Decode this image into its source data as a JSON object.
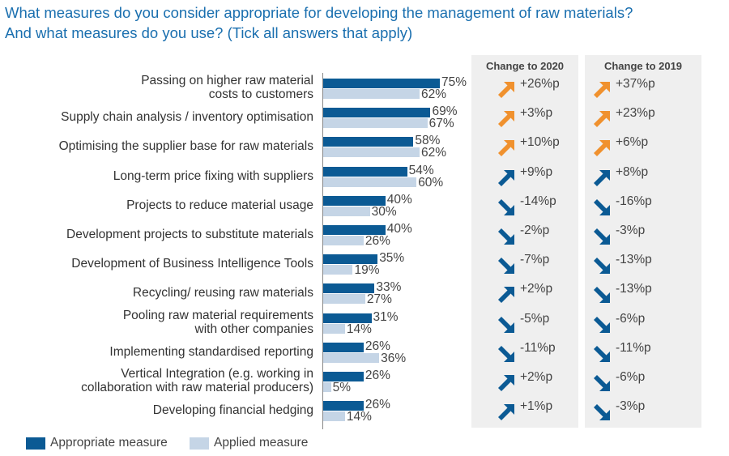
{
  "title_lines": [
    "What measures do you consider appropriate for developing the management of raw materials?",
    "And what measures do you use? (Tick all answers that apply)"
  ],
  "colors": {
    "appropriate": "#0b5a94",
    "applied": "#c5d5e6",
    "up_highlight": "#f0912e",
    "arrow": "#0b5a94"
  },
  "chart_data": {
    "type": "bar",
    "orientation": "horizontal",
    "categories": [
      [
        "Passing on higher raw material",
        "costs to customers"
      ],
      [
        "Supply chain analysis / inventory optimisation"
      ],
      [
        "Optimising the supplier base for raw materials"
      ],
      [
        "Long-term price fixing with suppliers"
      ],
      [
        "Projects to reduce material usage"
      ],
      [
        "Development projects to substitute materials"
      ],
      [
        "Development of Business Intelligence Tools"
      ],
      [
        "Recycling/ reusing raw materials"
      ],
      [
        "Pooling raw material requirements",
        "with other companies"
      ],
      [
        "Implementing standardised reporting"
      ],
      [
        "Vertical Integration (e.g. working in",
        "collaboration with raw material producers)"
      ],
      [
        "Developing financial hedging"
      ]
    ],
    "series": [
      {
        "name": "Appropriate measure",
        "values": [
          75,
          69,
          58,
          54,
          40,
          40,
          35,
          33,
          31,
          26,
          26,
          26
        ]
      },
      {
        "name": "Applied measure",
        "values": [
          62,
          67,
          62,
          60,
          30,
          26,
          19,
          27,
          14,
          36,
          5,
          14
        ]
      }
    ],
    "unit": "%",
    "legend": "bottom-left",
    "change_columns": [
      {
        "title": "Change to 2020",
        "values": [
          "+26%p",
          "+3%p",
          "+10%p",
          "+9%p",
          "-14%p",
          "-2%p",
          "-7%p",
          "+2%p",
          "-5%p",
          "-11%p",
          "+2%p",
          "+1%p"
        ],
        "highlight": [
          true,
          true,
          true,
          false,
          false,
          false,
          false,
          false,
          false,
          false,
          false,
          false
        ]
      },
      {
        "title": "Change to 2019",
        "values": [
          "+37%p",
          "+23%p",
          "+6%p",
          "+8%p",
          "-16%p",
          "-3%p",
          "-13%p",
          "-13%p",
          "-6%p",
          "-11%p",
          "-6%p",
          "-3%p"
        ],
        "highlight": [
          true,
          true,
          true,
          false,
          false,
          false,
          false,
          false,
          false,
          false,
          false,
          false
        ]
      }
    ]
  }
}
